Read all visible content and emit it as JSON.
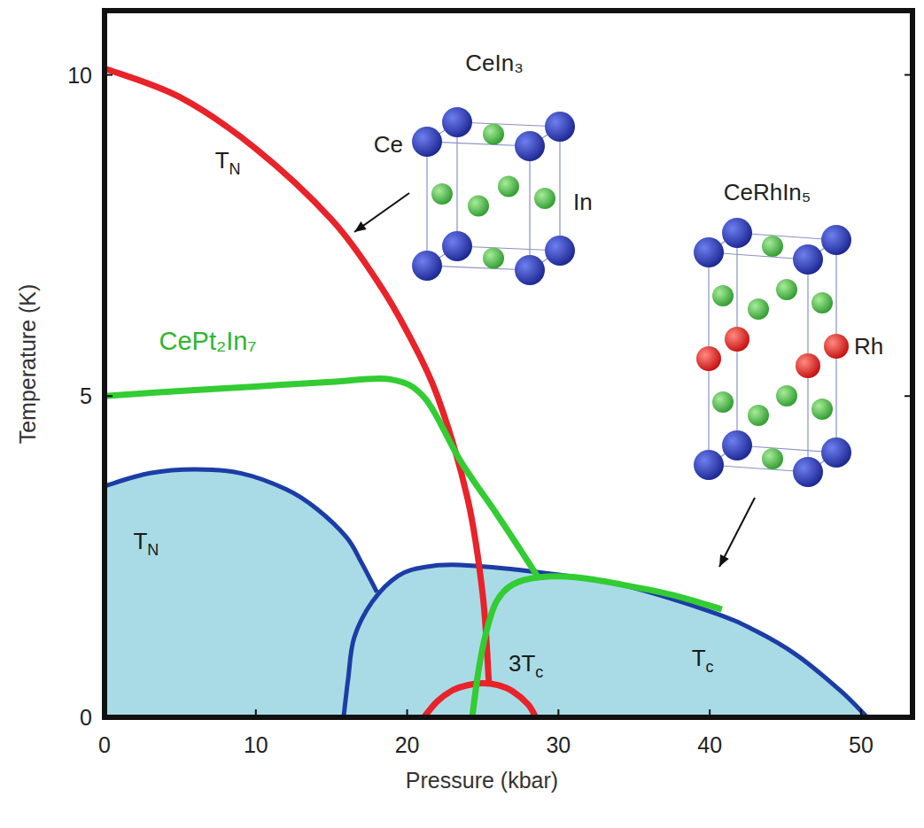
{
  "chart_data": {
    "type": "line",
    "xlabel": "Pressure (kbar)",
    "ylabel": "Temperature (K)",
    "xlim": [
      0,
      53.4
    ],
    "ylim": [
      0,
      11
    ],
    "xticks": [
      0,
      10,
      20,
      30,
      40,
      50
    ],
    "yticks": [
      0,
      5,
      10
    ],
    "grid": false,
    "series": [
      {
        "color": "#e8232a",
        "x": [
          0,
          5,
          10,
          15,
          18,
          20,
          22,
          24,
          25,
          25.4
        ],
        "values": [
          10.1,
          9.65,
          8.85,
          7.75,
          6.8,
          6.0,
          5.0,
          3.4,
          1.9,
          0.55
        ]
      },
      {
        "color": "#e8232a",
        "x": [
          21.1,
          22,
          23,
          24,
          25,
          26,
          27,
          28,
          28.5
        ],
        "values": [
          0,
          0.25,
          0.42,
          0.5,
          0.53,
          0.5,
          0.4,
          0.2,
          0
        ]
      },
      {
        "type": "area",
        "color": "#1c3da6",
        "x": [
          0,
          3,
          6,
          9,
          12,
          14,
          16,
          17,
          18
        ],
        "values": [
          3.6,
          3.8,
          3.86,
          3.8,
          3.55,
          3.25,
          2.8,
          2.4,
          1.95
        ]
      },
      {
        "type": "area",
        "color": "#1c3da6",
        "x": [
          15.8,
          16.1,
          16.5,
          17.7,
          19.4,
          21.2,
          23.5,
          28.2,
          34,
          40,
          43,
          45.8,
          48.7,
          50.4
        ],
        "values": [
          0,
          0.6,
          1.24,
          1.8,
          2.2,
          2.34,
          2.37,
          2.27,
          2.07,
          1.65,
          1.35,
          0.96,
          0.4,
          0
        ]
      },
      {
        "color": "#33cc33",
        "x": [
          0,
          5,
          10,
          15,
          18.9,
          21.2,
          23.5,
          25.9,
          27.5,
          28.6
        ],
        "values": [
          5.0,
          5.08,
          5.15,
          5.22,
          5.26,
          4.96,
          4.0,
          3.17,
          2.6,
          2.2
        ]
      },
      {
        "color": "#33cc33",
        "x": [
          24.3,
          24.7,
          25.2,
          25.9,
          27,
          28.8,
          31.1,
          34.1,
          37.6,
          40.8
        ],
        "values": [
          0,
          0.7,
          1.3,
          1.8,
          2.07,
          2.18,
          2.18,
          2.07,
          1.9,
          1.68
        ]
      }
    ],
    "annotations": [
      {
        "text": "T",
        "subscript": "N",
        "x": 7.3,
        "y": 8.55,
        "color": "#1a1a1a"
      },
      {
        "text": "T",
        "subscript": "N",
        "x": 1.9,
        "y": 2.62,
        "color": "#1a1a1a"
      },
      {
        "text": "T",
        "subscript": "c",
        "x": 38.8,
        "y": 0.8,
        "color": "#1a1a1a"
      },
      {
        "text": "3T",
        "subscript": "c",
        "x": 26.7,
        "y": 0.72,
        "color": "#1a1a1a"
      },
      {
        "text": "CePt₂In₇",
        "x": 3.6,
        "y": 5.72,
        "color": "#2fb52f"
      }
    ],
    "insets": [
      {
        "title": "CeIn₃",
        "atom_labels": [
          "Ce",
          "In"
        ]
      },
      {
        "title": "CeRhIn₅",
        "atom_labels": [
          "Rh"
        ]
      }
    ]
  }
}
